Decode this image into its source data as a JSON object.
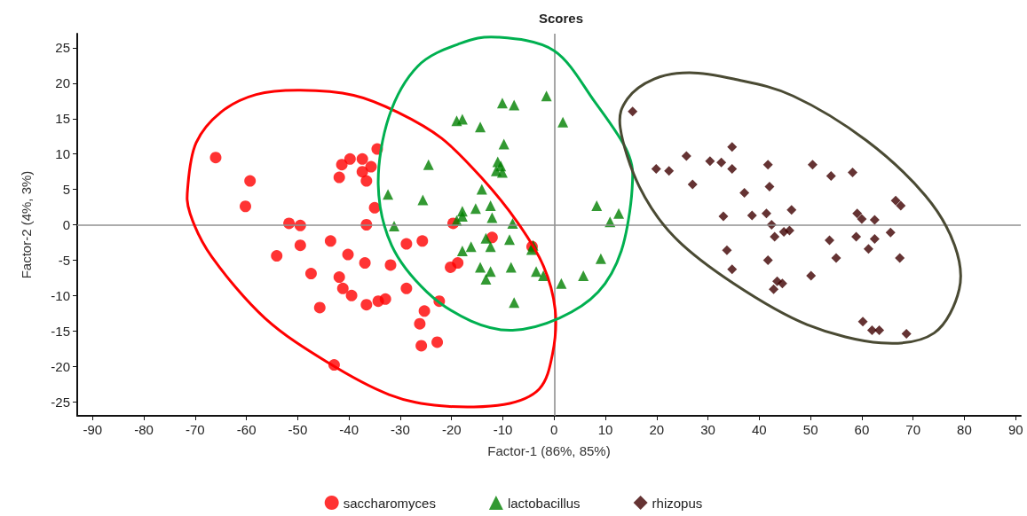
{
  "chart_data": {
    "type": "scatter",
    "title": "Scores",
    "xlabel": "Factor-1 (86%, 85%)",
    "ylabel": "Factor-2 (4%, 3%)",
    "xlim": [
      -93,
      91
    ],
    "ylim": [
      -27,
      27
    ],
    "xticks": [
      -90,
      -80,
      -70,
      -60,
      -50,
      -40,
      -30,
      -20,
      -10,
      0,
      10,
      20,
      30,
      40,
      50,
      60,
      70,
      80,
      90
    ],
    "yticks": [
      -25,
      -20,
      -15,
      -10,
      -5,
      0,
      5,
      10,
      15,
      20,
      25
    ],
    "grid": false,
    "legend": "bottom",
    "ref_lines": [
      {
        "axis": "x",
        "value": 0,
        "color": "#888888"
      },
      {
        "axis": "y",
        "value": 0,
        "color": "#909090"
      }
    ],
    "series": [
      {
        "name": "saccharomyces",
        "color": "#ff0000",
        "marker": "circle",
        "x": [
          -66.0,
          -59.3,
          -60.2,
          -51.7,
          -49.5,
          -49.5,
          -54.1,
          -47.4,
          -45.7,
          -42.9,
          -43.6,
          -40.2,
          -41.9,
          -41.2,
          -39.5,
          -36.9,
          -36.6,
          -34.3,
          -32.9,
          -31.9,
          -28.8,
          -28.8,
          -36.6,
          -35.0,
          -34.5,
          -41.4,
          -39.8,
          -37.4,
          -35.7,
          -37.4,
          -36.6,
          -41.9,
          -25.7,
          -25.3,
          -26.2,
          -25.9,
          -19.7,
          -12.1,
          -20.2,
          -18.8,
          -4.3,
          -22.4,
          -22.8
        ],
        "values": [
          9.5,
          6.2,
          2.6,
          0.2,
          -0.1,
          -2.9,
          -4.4,
          -6.9,
          -11.7,
          -19.8,
          -2.3,
          -4.2,
          -7.4,
          -9.0,
          -10.0,
          -5.4,
          -11.3,
          -10.8,
          -10.5,
          -5.7,
          -2.7,
          -9.0,
          0.0,
          2.4,
          10.7,
          8.5,
          9.3,
          9.3,
          8.2,
          7.5,
          6.2,
          6.7,
          -2.3,
          -12.2,
          -14.0,
          -17.1,
          0.2,
          -1.8,
          -6.0,
          -5.4,
          -3.1,
          -10.8,
          -16.6
        ]
      },
      {
        "name": "lactobacillus",
        "color": "#008000",
        "marker": "triangle",
        "x": [
          -1.5,
          -10.1,
          -7.8,
          -19.0,
          -17.9,
          -14.4,
          1.7,
          -9.8,
          -11.0,
          -10.4,
          -11.3,
          -10.1,
          -24.5,
          -32.4,
          -25.6,
          -14.1,
          -17.9,
          -15.3,
          -12.4,
          -12.1,
          -17.9,
          -19.0,
          -8.1,
          -31.2,
          8.3,
          12.6,
          10.9,
          -13.3,
          -8.7,
          -12.4,
          -17.9,
          -16.2,
          -4.1,
          -4.4,
          9.1,
          -14.4,
          -12.4,
          -13.3,
          -8.4,
          -3.5,
          -2.1,
          1.4,
          5.7,
          -7.8
        ],
        "values": [
          18.2,
          17.2,
          16.9,
          14.7,
          14.9,
          13.8,
          14.5,
          11.4,
          8.9,
          8.3,
          7.6,
          7.4,
          8.5,
          4.3,
          3.5,
          5.0,
          1.9,
          2.3,
          2.7,
          1.0,
          1.2,
          0.6,
          0.2,
          -0.2,
          2.7,
          1.6,
          0.4,
          -1.9,
          -2.1,
          -3.1,
          -3.7,
          -3.1,
          -2.9,
          -3.5,
          -4.8,
          -6.0,
          -6.6,
          -7.7,
          -6.0,
          -6.6,
          -7.2,
          -8.3,
          -7.2,
          -11.0
        ]
      },
      {
        "name": "rhizopus",
        "color": "#3f0000",
        "marker": "diamond",
        "x": [
          15.3,
          19.9,
          22.4,
          25.8,
          27.0,
          30.4,
          32.6,
          34.7,
          34.7,
          41.7,
          42.0,
          37.1,
          33.0,
          38.6,
          41.4,
          46.3,
          42.4,
          43.0,
          44.8,
          45.9,
          50.4,
          54.0,
          58.2,
          66.6,
          67.6,
          59.1,
          60.0,
          62.5,
          65.6,
          58.9,
          62.5,
          61.3,
          53.7,
          55.0,
          67.4,
          33.7,
          41.7,
          34.7,
          50.1,
          43.5,
          44.5,
          42.8,
          60.2,
          62.0,
          63.4,
          68.7
        ],
        "values": [
          16.0,
          7.9,
          7.6,
          9.7,
          5.7,
          9.0,
          8.8,
          11.0,
          7.9,
          8.5,
          5.4,
          4.5,
          1.2,
          1.3,
          1.6,
          2.1,
          0.0,
          -1.7,
          -1.0,
          -0.8,
          8.5,
          6.9,
          7.4,
          3.4,
          2.7,
          1.6,
          0.8,
          0.7,
          -1.1,
          -1.7,
          -2.0,
          -3.4,
          -2.2,
          -4.7,
          -4.7,
          -3.6,
          -5.0,
          -6.3,
          -7.2,
          -8.0,
          -8.3,
          -9.1,
          -13.7,
          -14.9,
          -14.9,
          -15.4
        ]
      }
    ]
  }
}
